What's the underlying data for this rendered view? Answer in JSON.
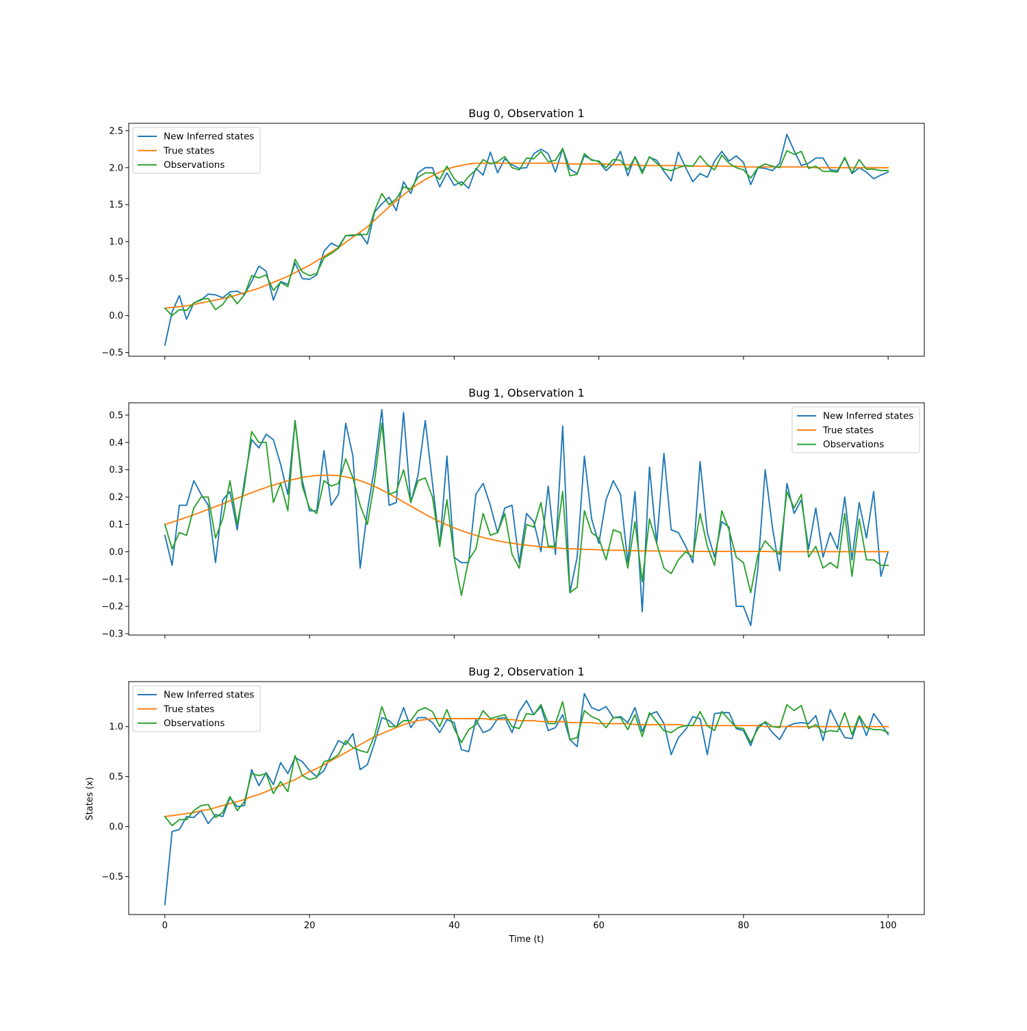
{
  "figure": {
    "xlabel": "Time (t)",
    "ylabel": "States (x)"
  },
  "chart_data": [
    {
      "type": "line",
      "title": "Bug 0, Observation 1",
      "xlabel": "",
      "ylabel": "",
      "xlim": [
        -5,
        105
      ],
      "ylim": [
        -0.55,
        2.6
      ],
      "xticks": [
        0,
        20,
        40,
        60,
        80,
        100
      ],
      "xticklabels": [
        "",
        "",
        "",
        "",
        "",
        ""
      ],
      "yticks": [
        -0.5,
        0.0,
        0.5,
        1.0,
        1.5,
        2.0,
        2.5
      ],
      "yticklabels": [
        "−0.5",
        "0.0",
        "0.5",
        "1.0",
        "1.5",
        "2.0",
        "2.5"
      ],
      "grid": false,
      "legend_position": "top-left",
      "colors": [
        "#1f77b4",
        "#ff7f0e",
        "#2ca02c"
      ],
      "series": [
        {
          "name": "New Inferred states",
          "values": [
            -0.4,
            0.05,
            0.27,
            -0.05,
            0.17,
            0.21,
            0.29,
            0.28,
            0.24,
            0.32,
            0.33,
            0.28,
            0.46,
            0.67,
            0.6,
            0.21,
            0.46,
            0.42,
            0.71,
            0.5,
            0.49,
            0.55,
            0.87,
            0.98,
            0.93,
            1.08,
            1.08,
            1.11,
            0.97,
            1.4,
            1.51,
            1.6,
            1.42,
            1.81,
            1.65,
            1.93,
            2.0,
            2.0,
            1.74,
            1.93,
            1.76,
            1.81,
            1.72,
            1.99,
            1.9,
            2.21,
            1.93,
            2.12,
            2.04,
            1.99,
            2.0,
            2.19,
            2.25,
            2.19,
            1.94,
            2.26,
            1.98,
            1.92,
            2.16,
            2.11,
            2.08,
            1.96,
            2.05,
            2.22,
            1.89,
            2.15,
            1.95,
            2.14,
            2.1,
            1.95,
            1.82,
            2.21,
            2.0,
            1.81,
            1.92,
            1.87,
            2.09,
            2.22,
            2.09,
            2.16,
            2.07,
            1.77,
            2.0,
            1.99,
            1.96,
            2.06,
            2.45,
            2.23,
            2.03,
            2.06,
            2.13,
            2.13,
            1.97,
            1.96,
            2.13,
            1.92,
            2.0,
            1.94,
            1.85,
            1.9,
            1.94
          ]
        },
        {
          "name": "True states",
          "values": [
            0.1,
            0.11,
            0.12,
            0.13,
            0.15,
            0.17,
            0.19,
            0.21,
            0.23,
            0.25,
            0.28,
            0.31,
            0.34,
            0.37,
            0.41,
            0.45,
            0.49,
            0.53,
            0.58,
            0.63,
            0.68,
            0.74,
            0.8,
            0.86,
            0.92,
            0.99,
            1.06,
            1.13,
            1.2,
            1.29,
            1.38,
            1.47,
            1.55,
            1.63,
            1.71,
            1.78,
            1.84,
            1.89,
            1.94,
            1.98,
            2.01,
            2.03,
            2.05,
            2.06,
            2.06,
            2.06,
            2.06,
            2.06,
            2.06,
            2.06,
            2.06,
            2.06,
            2.06,
            2.06,
            2.06,
            2.06,
            2.05,
            2.05,
            2.05,
            2.05,
            2.05,
            2.05,
            2.04,
            2.04,
            2.04,
            2.04,
            2.03,
            2.03,
            2.03,
            2.03,
            2.03,
            2.03,
            2.02,
            2.02,
            2.02,
            2.02,
            2.02,
            2.02,
            2.02,
            2.02,
            2.01,
            2.01,
            2.01,
            2.01,
            2.01,
            2.01,
            2.01,
            2.01,
            2.01,
            2.01,
            2.0,
            2.0,
            2.0,
            2.0,
            2.0,
            2.0,
            2.0,
            2.0,
            2.0,
            2.0,
            2.0
          ]
        },
        {
          "name": "Observations",
          "values": [
            0.1,
            0.0,
            0.08,
            0.07,
            0.17,
            0.22,
            0.23,
            0.08,
            0.15,
            0.29,
            0.16,
            0.28,
            0.54,
            0.51,
            0.55,
            0.34,
            0.45,
            0.39,
            0.76,
            0.59,
            0.54,
            0.57,
            0.78,
            0.84,
            0.91,
            1.08,
            1.09,
            1.09,
            1.1,
            1.42,
            1.65,
            1.5,
            1.58,
            1.74,
            1.71,
            1.87,
            1.93,
            1.93,
            1.84,
            2.02,
            1.85,
            1.76,
            1.88,
            1.97,
            2.11,
            2.05,
            2.08,
            2.15,
            2.0,
            1.97,
            2.13,
            2.12,
            2.22,
            2.08,
            2.1,
            2.26,
            1.89,
            1.91,
            2.19,
            2.1,
            2.09,
            2.0,
            2.11,
            2.1,
            1.97,
            2.14,
            1.92,
            2.15,
            2.06,
            1.98,
            1.96,
            2.0,
            2.03,
            2.02,
            2.16,
            2.04,
            1.97,
            2.17,
            2.06,
            2.0,
            1.97,
            1.86,
            2.0,
            2.05,
            2.02,
            2.0,
            2.23,
            2.18,
            2.22,
            1.99,
            2.02,
            1.95,
            1.95,
            1.94,
            2.14,
            1.93,
            2.11,
            1.98,
            1.98,
            1.96,
            1.96
          ]
        }
      ]
    },
    {
      "type": "line",
      "title": "Bug 1, Observation 1",
      "xlabel": "",
      "ylabel": "",
      "xlim": [
        -5,
        105
      ],
      "ylim": [
        -0.305,
        0.545
      ],
      "xticks": [
        0,
        20,
        40,
        60,
        80,
        100
      ],
      "xticklabels": [
        "",
        "",
        "",
        "",
        "",
        ""
      ],
      "yticks": [
        -0.3,
        -0.2,
        -0.1,
        0.0,
        0.1,
        0.2,
        0.3,
        0.4,
        0.5
      ],
      "yticklabels": [
        "−0.3",
        "−0.2",
        "−0.1",
        "0.0",
        "0.1",
        "0.2",
        "0.3",
        "0.4",
        "0.5"
      ],
      "grid": false,
      "legend_position": "top-right",
      "colors": [
        "#1f77b4",
        "#ff7f0e",
        "#2ca02c"
      ],
      "series": [
        {
          "name": "New Inferred states",
          "values": [
            0.06,
            -0.05,
            0.17,
            0.17,
            0.26,
            0.21,
            0.17,
            -0.04,
            0.19,
            0.22,
            0.08,
            0.26,
            0.41,
            0.38,
            0.43,
            0.41,
            0.32,
            0.21,
            0.48,
            0.26,
            0.15,
            0.15,
            0.37,
            0.17,
            0.21,
            0.47,
            0.35,
            -0.06,
            0.15,
            0.31,
            0.52,
            0.17,
            0.18,
            0.51,
            0.18,
            0.28,
            0.48,
            0.25,
            0.02,
            0.35,
            -0.02,
            -0.04,
            -0.04,
            0.21,
            0.25,
            0.17,
            0.07,
            0.16,
            0.17,
            -0.04,
            0.14,
            0.11,
            0.0,
            0.24,
            -0.01,
            0.46,
            -0.15,
            -0.02,
            0.35,
            0.12,
            0.03,
            0.19,
            0.26,
            0.21,
            -0.04,
            0.22,
            -0.22,
            0.31,
            0.03,
            0.36,
            0.08,
            0.07,
            0.02,
            -0.04,
            0.33,
            0.07,
            -0.02,
            0.11,
            0.09,
            -0.2,
            -0.2,
            -0.27,
            -0.06,
            0.3,
            0.09,
            -0.07,
            0.25,
            0.14,
            0.19,
            0.01,
            0.16,
            -0.02,
            0.07,
            0.01,
            0.2,
            -0.03,
            0.18,
            0.05,
            0.22,
            -0.09,
            0.0
          ]
        },
        {
          "name": "True states",
          "values": [
            0.1,
            0.108,
            0.117,
            0.126,
            0.135,
            0.145,
            0.155,
            0.165,
            0.175,
            0.186,
            0.196,
            0.206,
            0.216,
            0.226,
            0.235,
            0.244,
            0.252,
            0.26,
            0.266,
            0.272,
            0.276,
            0.279,
            0.28,
            0.28,
            0.278,
            0.274,
            0.268,
            0.26,
            0.25,
            0.239,
            0.226,
            0.212,
            0.197,
            0.182,
            0.167,
            0.152,
            0.137,
            0.123,
            0.11,
            0.098,
            0.087,
            0.077,
            0.068,
            0.06,
            0.052,
            0.046,
            0.04,
            0.035,
            0.031,
            0.027,
            0.024,
            0.021,
            0.018,
            0.016,
            0.014,
            0.012,
            0.011,
            0.01,
            0.009,
            0.008,
            0.007,
            0.006,
            0.005,
            0.005,
            0.004,
            0.004,
            0.003,
            0.003,
            0.003,
            0.002,
            0.002,
            0.002,
            0.002,
            0.002,
            0.001,
            0.001,
            0.001,
            0.001,
            0.001,
            0.001,
            0.001,
            0.001,
            0.001,
            0.001,
            0.0,
            0.0,
            0.0,
            0.0,
            0.0,
            0.0,
            0.0,
            0.0,
            0.0,
            0.0,
            0.0,
            0.0,
            0.0,
            0.0,
            0.0,
            0.0,
            0.0
          ]
        },
        {
          "name": "Observations",
          "values": [
            0.1,
            0.01,
            0.07,
            0.06,
            0.16,
            0.2,
            0.2,
            0.05,
            0.12,
            0.26,
            0.1,
            0.24,
            0.44,
            0.4,
            0.4,
            0.18,
            0.25,
            0.15,
            0.48,
            0.24,
            0.16,
            0.14,
            0.26,
            0.24,
            0.25,
            0.34,
            0.27,
            0.17,
            0.1,
            0.26,
            0.47,
            0.21,
            0.22,
            0.3,
            0.18,
            0.26,
            0.27,
            0.2,
            0.02,
            0.19,
            -0.02,
            -0.16,
            -0.03,
            0.01,
            0.14,
            0.06,
            0.07,
            0.14,
            -0.01,
            -0.06,
            0.1,
            0.09,
            0.18,
            0.02,
            0.02,
            0.22,
            -0.15,
            -0.13,
            0.15,
            0.07,
            0.05,
            -0.03,
            0.08,
            0.07,
            -0.06,
            0.11,
            -0.11,
            0.12,
            0.03,
            -0.06,
            -0.08,
            -0.03,
            -0.0,
            -0.02,
            0.14,
            0.02,
            -0.05,
            0.15,
            0.08,
            -0.02,
            -0.04,
            -0.15,
            -0.01,
            0.04,
            0.01,
            -0.01,
            0.22,
            0.16,
            0.21,
            -0.02,
            0.02,
            -0.06,
            -0.04,
            -0.06,
            0.14,
            -0.09,
            0.12,
            -0.03,
            -0.03,
            -0.05,
            -0.05
          ]
        }
      ]
    },
    {
      "type": "line",
      "title": "Bug 2, Observation 1",
      "xlabel": "Time (t)",
      "ylabel": "States (x)",
      "xlim": [
        -5,
        105
      ],
      "ylim": [
        -0.88,
        1.45
      ],
      "xticks": [
        0,
        20,
        40,
        60,
        80,
        100
      ],
      "xticklabels": [
        "0",
        "20",
        "40",
        "60",
        "80",
        "100"
      ],
      "yticks": [
        -0.5,
        0.0,
        0.5,
        1.0
      ],
      "yticklabels": [
        "−0.5",
        "0.0",
        "0.5",
        "1.0"
      ],
      "grid": false,
      "legend_position": "top-left",
      "colors": [
        "#1f77b4",
        "#ff7f0e",
        "#2ca02c"
      ],
      "series": [
        {
          "name": "New Inferred states",
          "values": [
            -0.78,
            -0.05,
            -0.03,
            0.1,
            0.09,
            0.16,
            0.03,
            0.12,
            0.1,
            0.29,
            0.2,
            0.21,
            0.57,
            0.41,
            0.54,
            0.42,
            0.64,
            0.53,
            0.69,
            0.65,
            0.56,
            0.5,
            0.56,
            0.72,
            0.86,
            0.82,
            0.93,
            0.57,
            0.62,
            0.84,
            1.09,
            1.06,
            0.99,
            1.19,
            0.99,
            1.09,
            1.09,
            1.04,
            0.94,
            1.07,
            1.04,
            0.77,
            0.75,
            1.07,
            0.94,
            0.97,
            1.08,
            1.09,
            0.94,
            1.15,
            1.26,
            1.12,
            1.2,
            0.96,
            0.99,
            1.12,
            0.87,
            0.8,
            1.33,
            1.19,
            1.16,
            1.2,
            1.09,
            1.1,
            1.04,
            1.19,
            0.95,
            1.12,
            1.15,
            1.03,
            0.72,
            0.89,
            0.97,
            1.1,
            1.08,
            0.72,
            1.13,
            1.14,
            1.14,
            0.98,
            0.96,
            0.81,
            1.01,
            1.04,
            0.94,
            0.87,
            1.0,
            1.03,
            1.04,
            1.03,
            1.11,
            0.86,
            1.17,
            1.02,
            0.89,
            0.88,
            1.1,
            0.91,
            1.13,
            1.03,
            0.92
          ]
        },
        {
          "name": "True states",
          "values": [
            0.1,
            0.11,
            0.12,
            0.13,
            0.14,
            0.16,
            0.17,
            0.19,
            0.21,
            0.23,
            0.25,
            0.27,
            0.3,
            0.32,
            0.35,
            0.38,
            0.41,
            0.44,
            0.47,
            0.51,
            0.55,
            0.58,
            0.62,
            0.66,
            0.7,
            0.74,
            0.78,
            0.82,
            0.86,
            0.9,
            0.93,
            0.96,
            0.99,
            1.02,
            1.04,
            1.06,
            1.07,
            1.08,
            1.08,
            1.08,
            1.08,
            1.08,
            1.08,
            1.08,
            1.08,
            1.07,
            1.07,
            1.07,
            1.07,
            1.06,
            1.06,
            1.06,
            1.05,
            1.05,
            1.05,
            1.05,
            1.04,
            1.04,
            1.04,
            1.04,
            1.03,
            1.03,
            1.03,
            1.03,
            1.03,
            1.02,
            1.02,
            1.02,
            1.02,
            1.02,
            1.02,
            1.02,
            1.01,
            1.01,
            1.01,
            1.01,
            1.01,
            1.01,
            1.01,
            1.01,
            1.01,
            1.01,
            1.01,
            1.0,
            1.0,
            1.0,
            1.0,
            1.0,
            1.0,
            1.0,
            1.0,
            1.0,
            1.0,
            1.0,
            1.0,
            1.0,
            1.0,
            1.0,
            1.0,
            1.0,
            1.0
          ]
        },
        {
          "name": "Observations",
          "values": [
            0.1,
            0.01,
            0.07,
            0.07,
            0.16,
            0.21,
            0.22,
            0.09,
            0.14,
            0.3,
            0.16,
            0.25,
            0.53,
            0.51,
            0.53,
            0.33,
            0.45,
            0.35,
            0.71,
            0.51,
            0.47,
            0.49,
            0.65,
            0.67,
            0.72,
            0.86,
            0.79,
            0.76,
            0.74,
            0.91,
            1.2,
            1.0,
            1.0,
            1.06,
            1.06,
            1.16,
            1.19,
            1.15,
            1.0,
            1.17,
            0.98,
            0.84,
            0.97,
            1.02,
            1.16,
            1.08,
            1.1,
            1.12,
            1.0,
            0.98,
            1.13,
            1.12,
            1.22,
            1.03,
            1.03,
            1.25,
            0.87,
            0.89,
            1.16,
            1.1,
            1.07,
            0.99,
            1.09,
            1.09,
            0.97,
            1.12,
            0.9,
            1.14,
            1.05,
            0.96,
            0.94,
            0.99,
            1.01,
            1.01,
            1.15,
            1.01,
            0.96,
            1.15,
            1.07,
            0.99,
            0.98,
            0.84,
            0.98,
            1.05,
            1.0,
            0.99,
            1.22,
            1.16,
            1.21,
            0.98,
            1.02,
            0.94,
            0.96,
            0.95,
            1.14,
            0.92,
            1.11,
            0.99,
            0.97,
            0.97,
            0.94
          ]
        }
      ]
    }
  ]
}
